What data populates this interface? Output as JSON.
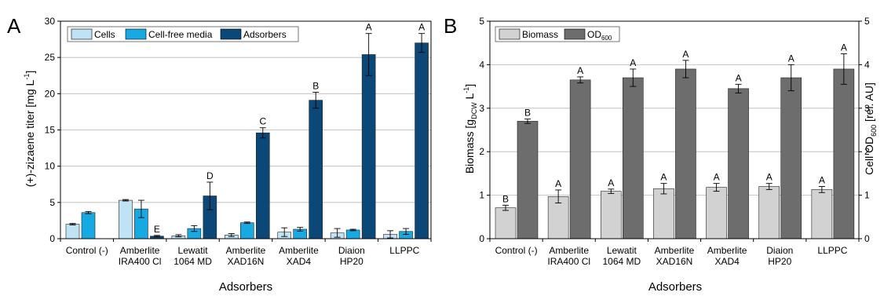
{
  "panels": [
    {
      "letter": "A",
      "legend": [
        "Cells",
        "Cell-free media",
        "Adsorbers"
      ],
      "ylabel": "(+)-zizaene titer [mg L",
      "ylabel_sup": "-1",
      "ylabel_end": "]",
      "xlabel": "Adsorbers"
    },
    {
      "letter": "B",
      "legend": [
        "Biomass",
        "OD",
        "600"
      ],
      "ylabel_left": "Biomass  [g",
      "ylabel_left_sub": "DCW",
      "ylabel_left_mid": " L",
      "ylabel_left_sup": "-1",
      "ylabel_left_end": "]",
      "ylabel_right": "Cell OD",
      "ylabel_right_sub": "600",
      "ylabel_right_end": " [rel. AU]",
      "xlabel": "Adsorbers"
    }
  ],
  "chart_data": [
    {
      "type": "bar",
      "categories": [
        [
          "Control (-)"
        ],
        [
          "Amberlite",
          "IRA400 Cl"
        ],
        [
          "Lewatit",
          "1064 MD"
        ],
        [
          "Amberlite",
          "XAD16N"
        ],
        [
          "Amberlite",
          "XAD4"
        ],
        [
          "Diaion",
          "HP20"
        ],
        [
          "LLPPC"
        ]
      ],
      "xlabel": "Adsorbers",
      "ylabel": "(+)-zizaene titer [mg L-1]",
      "ylim": [
        0,
        30
      ],
      "yticks": [
        0,
        5,
        10,
        15,
        20,
        25,
        30
      ],
      "grid": true,
      "legend_position": "top-left",
      "series": [
        {
          "name": "Cells",
          "color": "#bfe3f5",
          "values": [
            2.0,
            5.3,
            0.4,
            0.5,
            0.9,
            0.8,
            0.6
          ],
          "errors": [
            0.1,
            0.1,
            0.15,
            0.2,
            0.6,
            0.6,
            0.5
          ],
          "letters": [
            "",
            "",
            "",
            "",
            "",
            "",
            ""
          ]
        },
        {
          "name": "Cell-free media",
          "color": "#17a9e1",
          "values": [
            3.6,
            4.1,
            1.4,
            2.2,
            1.3,
            1.2,
            1.0
          ],
          "errors": [
            0.15,
            1.2,
            0.4,
            0.1,
            0.25,
            0.1,
            0.4
          ],
          "letters": [
            "",
            "",
            "",
            "",
            "",
            "",
            ""
          ]
        },
        {
          "name": "Adsorbers",
          "color": "#0c4877",
          "values": [
            null,
            0.35,
            5.9,
            14.6,
            19.1,
            25.4,
            27.0
          ],
          "errors": [
            0,
            0.1,
            1.9,
            0.7,
            1.1,
            2.9,
            1.3
          ],
          "letters": [
            "",
            "E",
            "D",
            "C",
            "B",
            "A",
            "A"
          ]
        }
      ]
    },
    {
      "type": "bar",
      "categories": [
        [
          "Control (-)"
        ],
        [
          "Amberlite",
          "IRA400 Cl"
        ],
        [
          "Lewatit",
          "1064 MD"
        ],
        [
          "Amberlite",
          "XAD16N"
        ],
        [
          "Amberlite",
          "XAD4"
        ],
        [
          "Diaion",
          "HP20"
        ],
        [
          "LLPPC"
        ]
      ],
      "xlabel": "Adsorbers",
      "ylabel_left": "Biomass [gDCW L-1]",
      "ylabel_right": "Cell OD600 [rel. AU]",
      "ylim": [
        0,
        5
      ],
      "yticks": [
        0,
        1,
        2,
        3,
        4,
        5
      ],
      "grid": true,
      "legend_position": "top-left",
      "series": [
        {
          "name": "Biomass",
          "color": "#d2d2d2",
          "axis": "left",
          "values": [
            0.71,
            0.97,
            1.09,
            1.15,
            1.18,
            1.2,
            1.13
          ],
          "errors": [
            0.06,
            0.15,
            0.05,
            0.12,
            0.09,
            0.07,
            0.07
          ],
          "letters": [
            "B",
            "A",
            "A",
            "A",
            "A",
            "A",
            "A"
          ]
        },
        {
          "name": "OD600",
          "color": "#6d6d6d",
          "axis": "right",
          "values": [
            2.7,
            3.65,
            3.7,
            3.9,
            3.45,
            3.7,
            3.9
          ],
          "errors": [
            0.05,
            0.07,
            0.2,
            0.2,
            0.1,
            0.3,
            0.35
          ],
          "letters": [
            "B",
            "A",
            "A",
            "A",
            "A",
            "A",
            "A"
          ]
        }
      ]
    }
  ]
}
